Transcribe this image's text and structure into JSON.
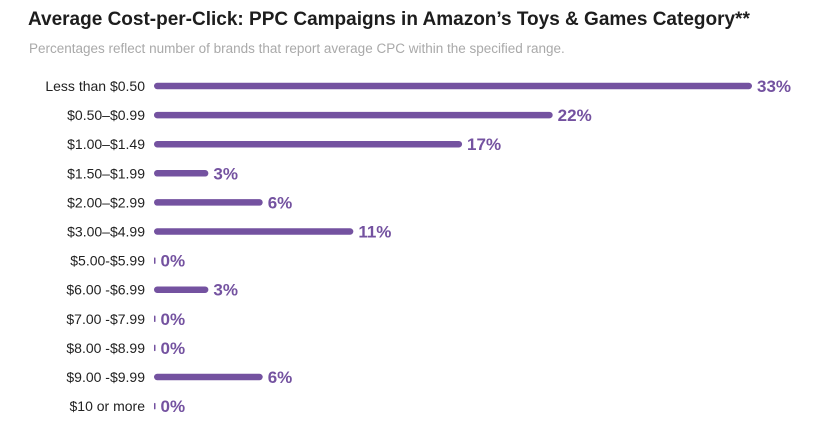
{
  "colors": {
    "bar": "#7452a0",
    "label": "#7452a0"
  },
  "chart_data": {
    "type": "bar",
    "orientation": "horizontal",
    "title": "Average Cost-per-Click: PPC Campaigns in Amazon’s Toys & Games Category**",
    "subtitle": "Percentages reflect number of brands that report average CPC within the specified range.",
    "categories": [
      "Less than $0.50",
      "$0.50–$0.99",
      "$1.00–$1.49",
      "$1.50–$1.99",
      "$2.00–$2.99",
      "$3.00–$4.99",
      "$5.00-$5.99",
      "$6.00 -$6.99",
      "$7.00 -$7.99",
      "$8.00 -$8.99",
      "$9.00 -$9.99",
      "$10 or more"
    ],
    "values": [
      33,
      22,
      17,
      3,
      6,
      11,
      0,
      3,
      0,
      0,
      6,
      0
    ],
    "value_labels": [
      "33%",
      "22%",
      "17%",
      "3%",
      "6%",
      "11%",
      "0%",
      "3%",
      "0%",
      "0%",
      "6%",
      "0%"
    ],
    "unit": "%",
    "xlim": [
      0,
      33
    ]
  }
}
